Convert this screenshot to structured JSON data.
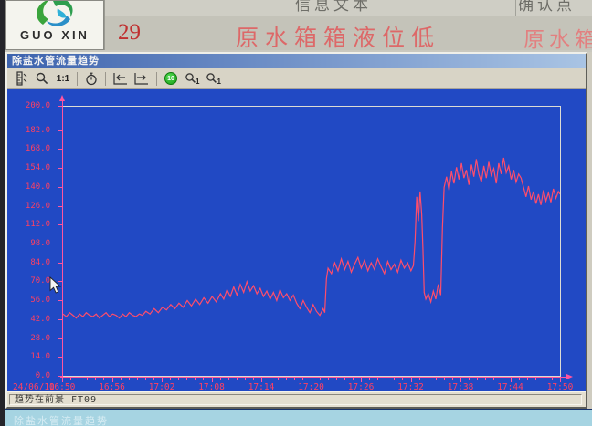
{
  "alarm_panel": {
    "logo_text": "GUO XIN",
    "col_header_message": "信息文本",
    "col_header_confirm": "确认点",
    "alarm_no": "29",
    "alarm_message": "原水箱箱液位低",
    "alarm_confirm": "原水箱"
  },
  "trend_window": {
    "title": "除盐水管流量趋势",
    "toolbar": {
      "zoom_ratio_label": "1:1",
      "interval_badge": "10",
      "mag_sub_1": "1",
      "mag_sub_2": "1"
    },
    "status_text": "趋势在前景  FT09"
  },
  "taskbar_text": "除盐水管流量趋势",
  "colors": {
    "plot_bg": "#2149c4",
    "axis": "#ff55a0",
    "tick_label": "#ff4062",
    "line": "#ff4d6b"
  },
  "chart_data": {
    "type": "line",
    "title": "除盐水管流量趋势",
    "xlabel": "",
    "ylabel": "",
    "ylim": [
      0,
      200
    ],
    "x_minutes": 60,
    "date_label": "24/06/10",
    "x_tick_labels": [
      "16:50",
      "16:56",
      "17:02",
      "17:08",
      "17:14",
      "17:20",
      "17:26",
      "17:32",
      "17:38",
      "17:44",
      "17:50"
    ],
    "y_tick_labels": [
      "200.0",
      "182.0",
      "168.0",
      "154.0",
      "140.0",
      "126.0",
      "112.0",
      "98.0",
      "84.0",
      "70.0",
      "56.0",
      "42.0",
      "28.0",
      "14.0",
      "0.0"
    ],
    "grid": false,
    "legend": false,
    "series": [
      {
        "name": "FT09 除盐水管流量",
        "color": "#ff4d6b",
        "points": [
          [
            0,
            46
          ],
          [
            0.4,
            44
          ],
          [
            0.8,
            47
          ],
          [
            1.2,
            45
          ],
          [
            1.6,
            43
          ],
          [
            2,
            46
          ],
          [
            2.4,
            44
          ],
          [
            2.8,
            47
          ],
          [
            3.2,
            45
          ],
          [
            3.6,
            44
          ],
          [
            4,
            46
          ],
          [
            4.4,
            43
          ],
          [
            4.8,
            45
          ],
          [
            5.2,
            47
          ],
          [
            5.6,
            44
          ],
          [
            6,
            46
          ],
          [
            6.4,
            45
          ],
          [
            6.8,
            43
          ],
          [
            7.2,
            46
          ],
          [
            7.6,
            44
          ],
          [
            8,
            47
          ],
          [
            8.4,
            45
          ],
          [
            8.8,
            44
          ],
          [
            9.2,
            46
          ],
          [
            9.6,
            45
          ],
          [
            10,
            48
          ],
          [
            10.5,
            46
          ],
          [
            11,
            50
          ],
          [
            11.5,
            47
          ],
          [
            12,
            51
          ],
          [
            12.5,
            49
          ],
          [
            13,
            53
          ],
          [
            13.5,
            50
          ],
          [
            14,
            54
          ],
          [
            14.5,
            51
          ],
          [
            15,
            56
          ],
          [
            15.5,
            52
          ],
          [
            16,
            57
          ],
          [
            16.5,
            53
          ],
          [
            17,
            58
          ],
          [
            17.5,
            54
          ],
          [
            18,
            59
          ],
          [
            18.5,
            55
          ],
          [
            19,
            61
          ],
          [
            19.4,
            57
          ],
          [
            19.8,
            64
          ],
          [
            20.2,
            59
          ],
          [
            20.6,
            66
          ],
          [
            21,
            60
          ],
          [
            21.4,
            68
          ],
          [
            21.8,
            62
          ],
          [
            22.2,
            70
          ],
          [
            22.6,
            63
          ],
          [
            23,
            67
          ],
          [
            23.4,
            61
          ],
          [
            23.8,
            65
          ],
          [
            24.2,
            59
          ],
          [
            24.6,
            63
          ],
          [
            25,
            57
          ],
          [
            25.4,
            62
          ],
          [
            25.8,
            56
          ],
          [
            26.2,
            64
          ],
          [
            26.6,
            58
          ],
          [
            27,
            61
          ],
          [
            27.4,
            56
          ],
          [
            27.8,
            60
          ],
          [
            28.2,
            54
          ],
          [
            28.6,
            50
          ],
          [
            29,
            56
          ],
          [
            29.4,
            51
          ],
          [
            29.8,
            47
          ],
          [
            30.2,
            53
          ],
          [
            30.6,
            48
          ],
          [
            31,
            45
          ],
          [
            31.4,
            50
          ],
          [
            31.6,
            47
          ],
          [
            31.8,
            72
          ],
          [
            32,
            80
          ],
          [
            32.4,
            76
          ],
          [
            32.8,
            84
          ],
          [
            33.2,
            78
          ],
          [
            33.6,
            87
          ],
          [
            34,
            79
          ],
          [
            34.4,
            85
          ],
          [
            34.8,
            77
          ],
          [
            35.2,
            83
          ],
          [
            35.6,
            88
          ],
          [
            36,
            80
          ],
          [
            36.4,
            86
          ],
          [
            36.8,
            78
          ],
          [
            37.2,
            84
          ],
          [
            37.6,
            79
          ],
          [
            38,
            87
          ],
          [
            38.4,
            81
          ],
          [
            38.8,
            76
          ],
          [
            39.2,
            85
          ],
          [
            39.6,
            79
          ],
          [
            40,
            83
          ],
          [
            40.4,
            77
          ],
          [
            40.8,
            86
          ],
          [
            41.2,
            80
          ],
          [
            41.6,
            84
          ],
          [
            42,
            78
          ],
          [
            42.3,
            82
          ],
          [
            42.5,
            100
          ],
          [
            42.7,
            133
          ],
          [
            42.9,
            115
          ],
          [
            43.1,
            137
          ],
          [
            43.3,
            120
          ],
          [
            43.45,
            95
          ],
          [
            43.6,
            62
          ],
          [
            43.8,
            57
          ],
          [
            44.1,
            61
          ],
          [
            44.4,
            55
          ],
          [
            44.7,
            63
          ],
          [
            45,
            57
          ],
          [
            45.3,
            68
          ],
          [
            45.6,
            60
          ],
          [
            45.8,
            110
          ],
          [
            46,
            140
          ],
          [
            46.3,
            148
          ],
          [
            46.6,
            138
          ],
          [
            46.9,
            152
          ],
          [
            47.2,
            143
          ],
          [
            47.5,
            155
          ],
          [
            47.8,
            146
          ],
          [
            48.1,
            158
          ],
          [
            48.4,
            147
          ],
          [
            48.7,
            153
          ],
          [
            49,
            142
          ],
          [
            49.3,
            157
          ],
          [
            49.6,
            148
          ],
          [
            49.9,
            161
          ],
          [
            50.2,
            150
          ],
          [
            50.5,
            144
          ],
          [
            50.8,
            156
          ],
          [
            51.1,
            147
          ],
          [
            51.4,
            159
          ],
          [
            51.7,
            149
          ],
          [
            52,
            154
          ],
          [
            52.3,
            143
          ],
          [
            52.6,
            158
          ],
          [
            52.9,
            150
          ],
          [
            53.2,
            162
          ],
          [
            53.5,
            151
          ],
          [
            53.8,
            156
          ],
          [
            54.1,
            146
          ],
          [
            54.4,
            153
          ],
          [
            54.7,
            144
          ],
          [
            55,
            150
          ],
          [
            55.3,
            147
          ],
          [
            55.6,
            140
          ],
          [
            55.9,
            133
          ],
          [
            56.2,
            141
          ],
          [
            56.5,
            131
          ],
          [
            56.8,
            137
          ],
          [
            57.1,
            128
          ],
          [
            57.4,
            135
          ],
          [
            57.7,
            127
          ],
          [
            58,
            138
          ],
          [
            58.3,
            130
          ],
          [
            58.6,
            136
          ],
          [
            58.9,
            129
          ],
          [
            59.2,
            139
          ],
          [
            59.5,
            132
          ],
          [
            59.8,
            137
          ],
          [
            60,
            135
          ]
        ]
      }
    ]
  }
}
